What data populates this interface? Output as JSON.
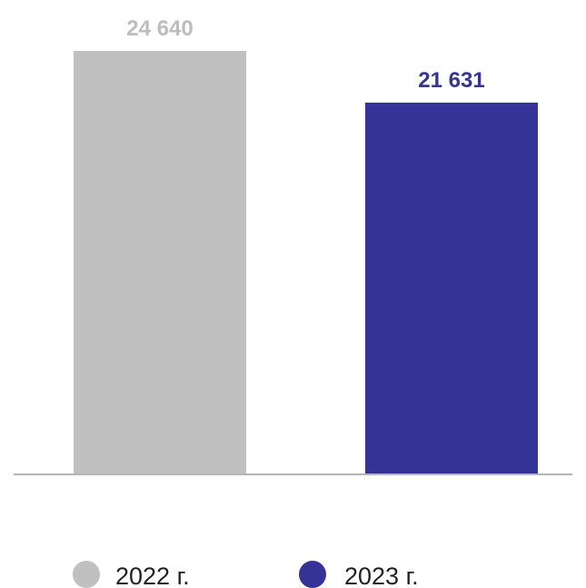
{
  "chart_data": {
    "type": "bar",
    "categories": [
      "2022 г.",
      "2023 г."
    ],
    "values": [
      24640,
      21631
    ],
    "value_labels": [
      "24 640",
      "21 631"
    ],
    "colors": [
      "#c0c0c0",
      "#363396"
    ],
    "ylim": [
      0,
      24640
    ],
    "grid": false,
    "legend_position": "bottom",
    "legend": [
      {
        "label": "2022 г.",
        "color": "#c0c0c0"
      },
      {
        "label": "2023 г.",
        "color": "#363396"
      }
    ]
  }
}
